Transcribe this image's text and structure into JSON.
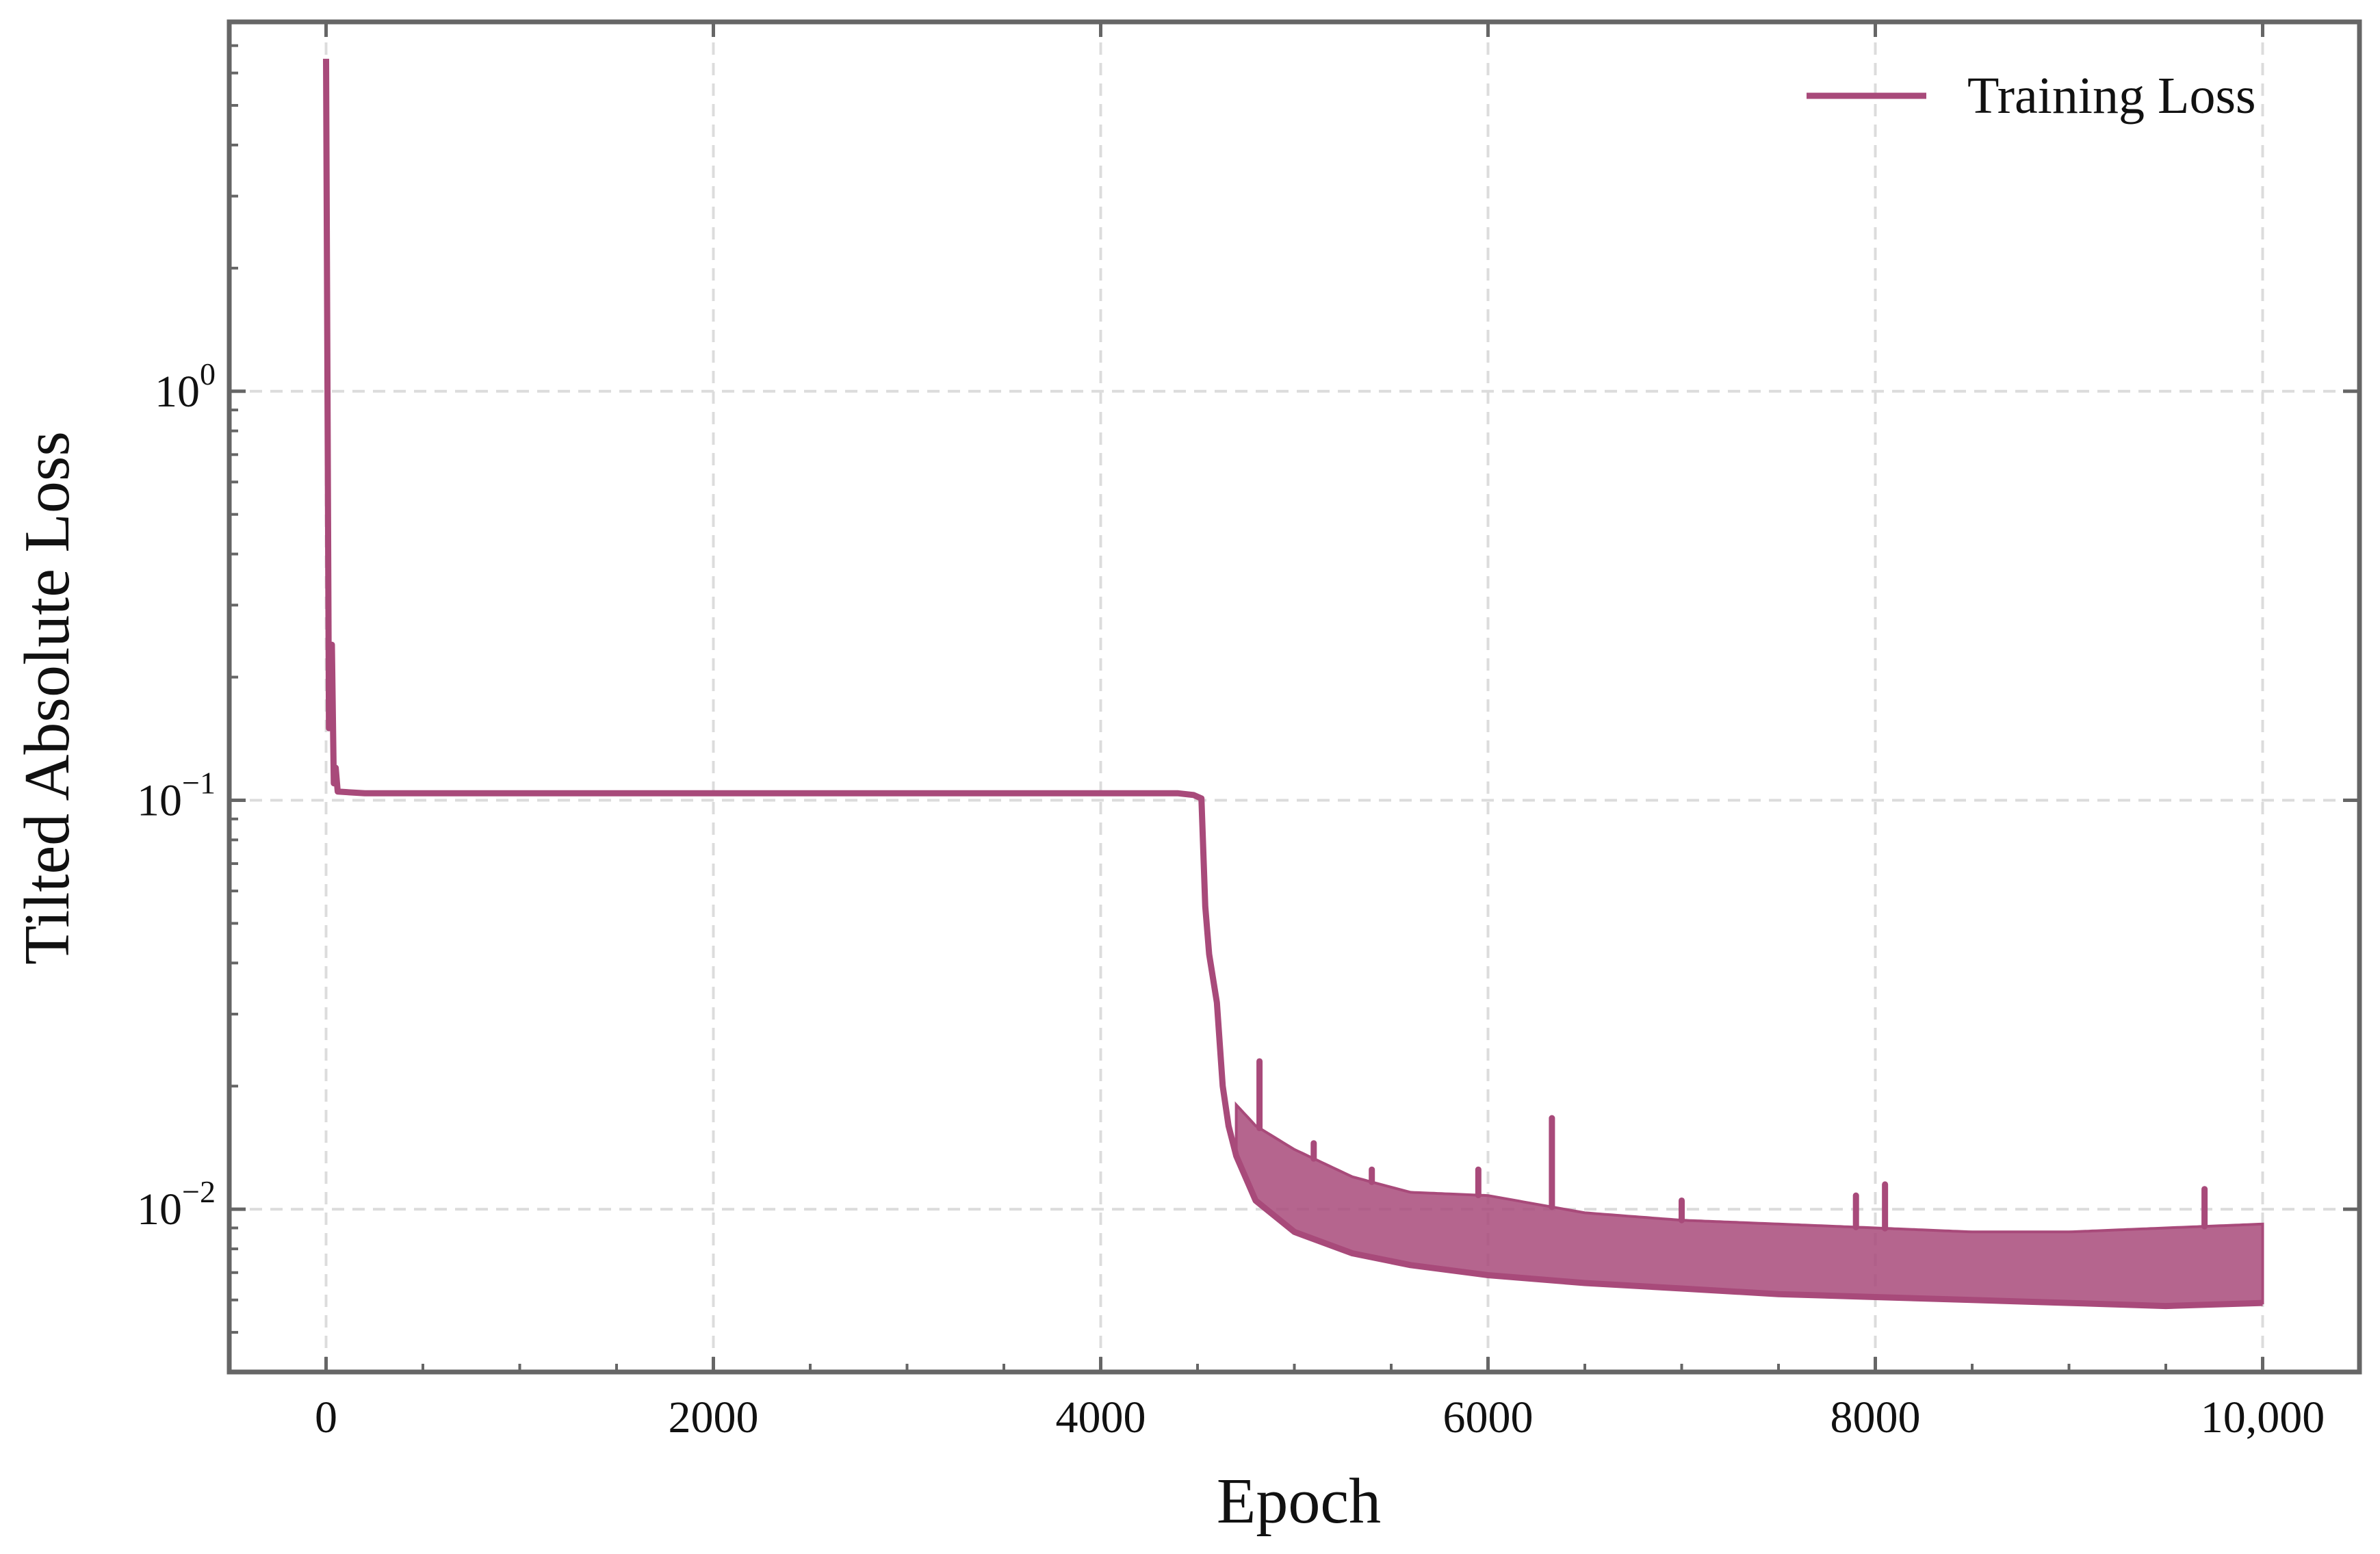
{
  "chart_data": {
    "type": "line",
    "title": "",
    "xlabel": "Epoch",
    "ylabel": "Tilted Absolute Loss",
    "xscale": "linear",
    "yscale": "log",
    "xlim": [
      -500,
      10500
    ],
    "ylim": [
      0.004,
      8
    ],
    "grid": true,
    "legend_position": "top-right",
    "x_ticks": [
      {
        "value": 0,
        "label": "0"
      },
      {
        "value": 2000,
        "label": "2000"
      },
      {
        "value": 4000,
        "label": "4000"
      },
      {
        "value": 6000,
        "label": "6000"
      },
      {
        "value": 8000,
        "label": "8000"
      },
      {
        "value": 10000,
        "label": "10,000"
      }
    ],
    "y_ticks": [
      {
        "value": 1,
        "base": "10",
        "exponent": "0"
      },
      {
        "value": 0.1,
        "base": "10",
        "exponent": "−1"
      },
      {
        "value": 0.01,
        "base": "10",
        "exponent": "−2"
      }
    ],
    "series": [
      {
        "name": "Training Loss",
        "color": "#a84a7a",
        "description_points": {
          "x": [
            0,
            15,
            30,
            40,
            50,
            60,
            200,
            1000,
            2000,
            3000,
            4000,
            4400,
            4480,
            4520,
            4540,
            4560,
            4600,
            4630,
            4660,
            4700,
            4800,
            5000,
            5300,
            5600,
            6000,
            6500,
            7000,
            7500,
            8000,
            8500,
            9000,
            9500,
            10000
          ],
          "y": [
            6.5,
            0.15,
            0.24,
            0.11,
            0.12,
            0.105,
            0.104,
            0.104,
            0.104,
            0.104,
            0.104,
            0.104,
            0.103,
            0.101,
            0.055,
            0.042,
            0.032,
            0.02,
            0.016,
            0.0135,
            0.0105,
            0.0088,
            0.0078,
            0.0073,
            0.0069,
            0.0066,
            0.0064,
            0.0062,
            0.0061,
            0.006,
            0.0059,
            0.0058,
            0.0059
          ]
        },
        "upper_envelope": {
          "x": [
            4700,
            4800,
            5000,
            5300,
            5600,
            6000,
            6500,
            7000,
            7500,
            8000,
            8500,
            9000,
            9500,
            10000
          ],
          "y": [
            0.018,
            0.016,
            0.014,
            0.012,
            0.011,
            0.0108,
            0.0098,
            0.0094,
            0.0092,
            0.009,
            0.0088,
            0.0088,
            0.009,
            0.0092
          ]
        },
        "spikes": [
          {
            "x": 4820,
            "y": 0.023
          },
          {
            "x": 5100,
            "y": 0.0145
          },
          {
            "x": 5400,
            "y": 0.0125
          },
          {
            "x": 5950,
            "y": 0.0125
          },
          {
            "x": 6330,
            "y": 0.0167
          },
          {
            "x": 7000,
            "y": 0.0105
          },
          {
            "x": 7900,
            "y": 0.0108
          },
          {
            "x": 8050,
            "y": 0.0115
          },
          {
            "x": 9700,
            "y": 0.0112
          }
        ]
      }
    ]
  }
}
